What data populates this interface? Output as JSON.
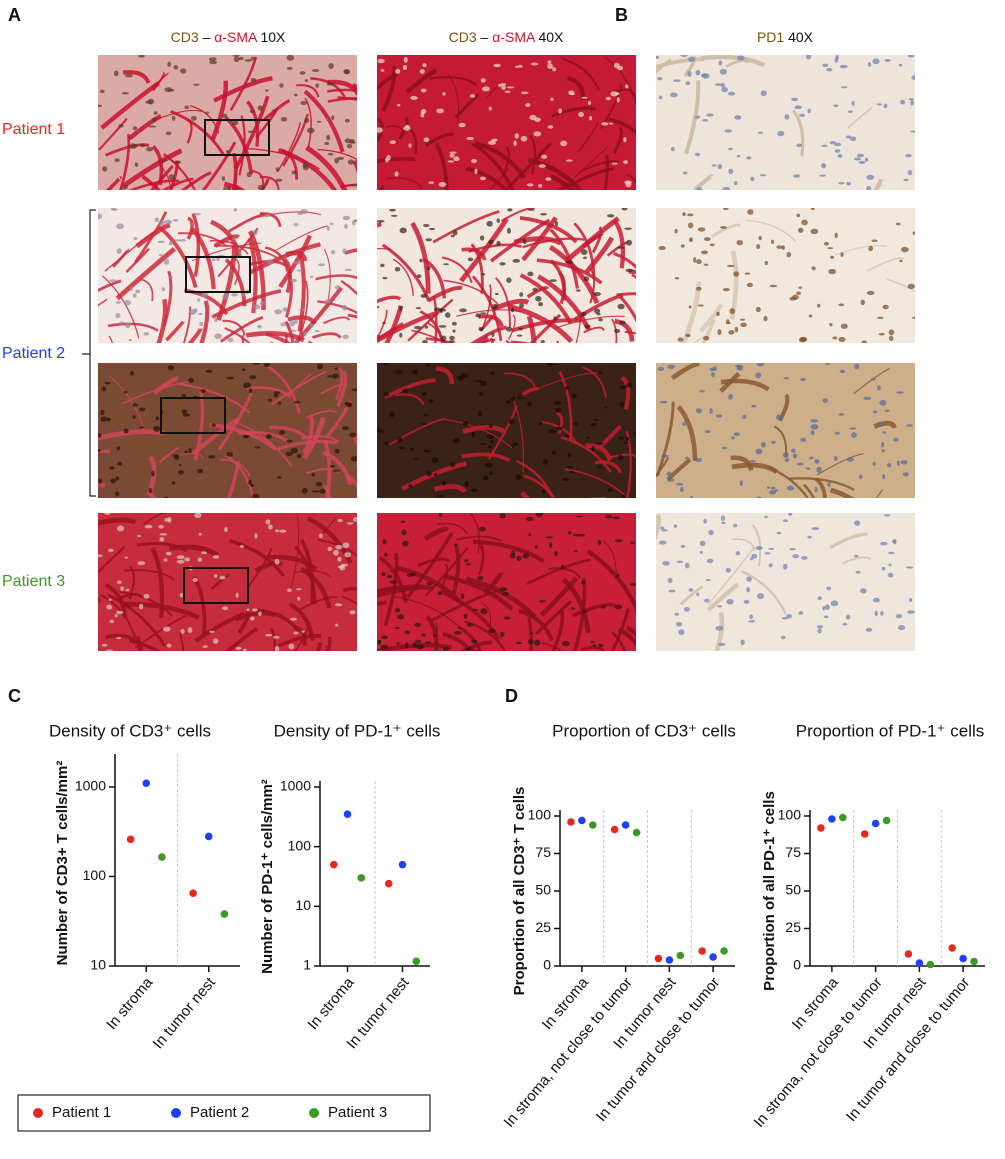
{
  "figure": {
    "panel_labels": [
      "A",
      "B",
      "C",
      "D"
    ],
    "column_headers": [
      [
        "CD3",
        "–",
        "α-SMA",
        "10X"
      ],
      [
        "CD3",
        "–",
        "α-SMA",
        "40X"
      ],
      [
        "PD1",
        "40X"
      ]
    ],
    "row_labels": [
      "Patient 1",
      "Patient 2",
      "Patient 3"
    ]
  },
  "chart_data": [
    {
      "type": "strip",
      "title": "Density of CD3⁺ cells",
      "y_label": "Number of CD3+ T cells/mm²",
      "categories": [
        "In stroma",
        "In tumor nest"
      ],
      "log_scale": true,
      "ylim": [
        10,
        2000
      ],
      "yticks": [
        10,
        100,
        1000
      ],
      "series": [
        {
          "name": "Patient 1",
          "color": "#e8281e",
          "values": [
            260,
            65
          ]
        },
        {
          "name": "Patient 2",
          "color": "#1f3fff",
          "values": [
            1100,
            280
          ]
        },
        {
          "name": "Patient 3",
          "color": "#3a9a22",
          "values": [
            165,
            38
          ]
        }
      ]
    },
    {
      "type": "strip",
      "title": "Density of PD-1⁺ cells",
      "y_label": "Number of PD-1⁺ cells/mm²",
      "categories": [
        "In stroma",
        "In tumor nest"
      ],
      "log_scale": true,
      "ylim": [
        1,
        1000
      ],
      "yticks": [
        1,
        10,
        100,
        1000
      ],
      "series": [
        {
          "color": "#e8281e",
          "values": [
            50,
            24
          ]
        },
        {
          "color": "#1f3fff",
          "values": [
            350,
            50
          ]
        },
        {
          "color": "#3a9a22",
          "values": [
            30,
            1.2
          ]
        }
      ]
    },
    {
      "type": "strip",
      "title": "Proportion of CD3⁺ cells",
      "y_label": "Proportion of all CD3⁺ T cells",
      "categories": [
        "In stroma",
        "In stroma, not close to tumor",
        "In tumor nest",
        "In tumor and close to tumor"
      ],
      "log_scale": false,
      "ylim": [
        0,
        100
      ],
      "yticks": [
        0,
        25,
        50,
        75,
        100
      ],
      "series": [
        {
          "color": "#e8281e",
          "values": [
            96,
            91,
            5,
            10
          ]
        },
        {
          "color": "#1f3fff",
          "values": [
            97,
            94,
            4,
            6
          ]
        },
        {
          "color": "#3a9a22",
          "values": [
            94,
            89,
            7,
            10
          ]
        }
      ]
    },
    {
      "type": "strip",
      "title": "Proportion of PD-1⁺ cells",
      "y_label": "Proportion of all PD-1⁺ cells",
      "categories": [
        "In stroma",
        "In stroma, not close to tumor",
        "In tumor nest",
        "In tumor and close to tumor"
      ],
      "log_scale": false,
      "ylim": [
        0,
        100
      ],
      "yticks": [
        0,
        25,
        50,
        75,
        100
      ],
      "series": [
        {
          "color": "#e8281e",
          "values": [
            92,
            88,
            8,
            12
          ]
        },
        {
          "color": "#1f3fff",
          "values": [
            98,
            95,
            2,
            5
          ]
        },
        {
          "color": "#3a9a22",
          "values": [
            99,
            97,
            1,
            3
          ]
        }
      ]
    }
  ]
}
